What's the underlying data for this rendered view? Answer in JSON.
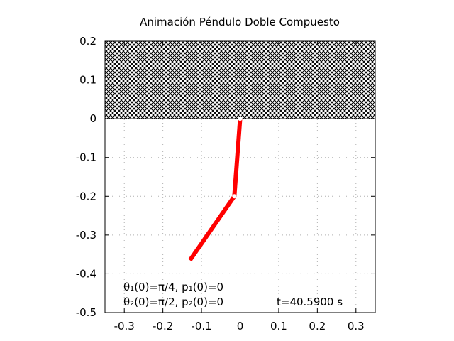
{
  "chart_data": {
    "type": "line",
    "title": "Animación Péndulo Doble Compuesto",
    "xlabel": "",
    "ylabel": "",
    "xlim": [
      -0.35,
      0.35
    ],
    "ylim": [
      -0.5,
      0.2
    ],
    "x_ticks": [
      -0.3,
      -0.2,
      -0.1,
      0,
      0.1,
      0.2,
      0.3
    ],
    "x_tick_labels": [
      "-0.3",
      "-0.2",
      "-0.1",
      "0",
      "0.1",
      "0.2",
      "0.3"
    ],
    "y_ticks": [
      0.2,
      0.1,
      0,
      -0.1,
      -0.2,
      -0.3,
      -0.4,
      -0.5
    ],
    "y_tick_labels": [
      "0.2",
      "0.1",
      "0",
      "-0.1",
      "-0.2",
      "-0.3",
      "-0.4",
      "-0.5"
    ],
    "grid": "dotted",
    "ceiling": {
      "y_from": 0,
      "y_to": 0.2,
      "pattern": "crosshatch"
    },
    "pivots": [
      {
        "x": 0.0,
        "y": 0.0
      },
      {
        "x": -0.015,
        "y": -0.2
      }
    ],
    "series": [
      {
        "color": "#ff0000",
        "points": [
          {
            "x": 0.0,
            "y": 0.0
          },
          {
            "x": -0.015,
            "y": -0.2
          },
          {
            "x": -0.13,
            "y": -0.365
          }
        ]
      }
    ],
    "annotations": {
      "theta1": "θ₁(0)=π/4, p₁(0)=0",
      "theta2": "θ₂(0)=π/2, p₂(0)=0",
      "time": "t=40.5900 s"
    }
  }
}
